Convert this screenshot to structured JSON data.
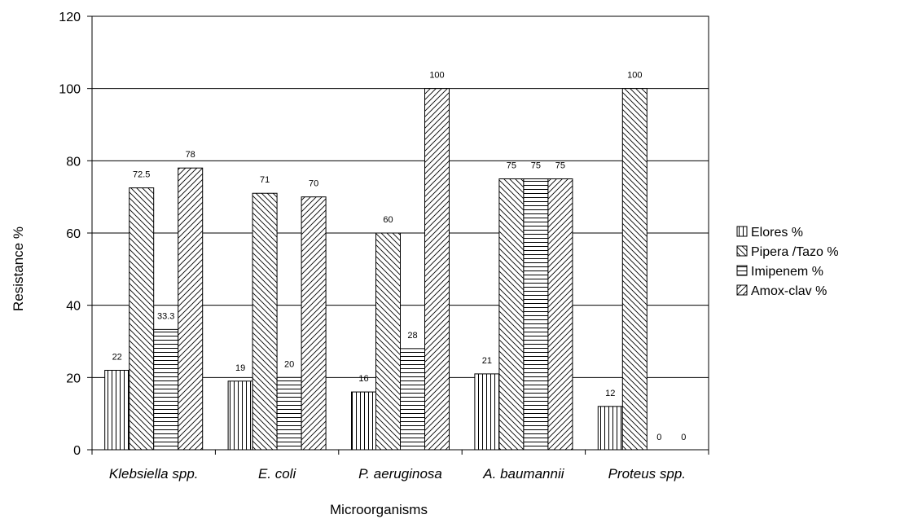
{
  "chart_data": {
    "type": "bar",
    "title": "",
    "xlabel": "Microorganisms",
    "ylabel": "Resistance %",
    "ylim": [
      0,
      120
    ],
    "yticks": [
      0,
      20,
      40,
      60,
      80,
      100,
      120
    ],
    "grid": true,
    "legend_position": "right",
    "categories": [
      "Klebsiella spp.",
      "E. coli",
      "P. aeruginosa",
      "A. baumannii",
      "Proteus spp."
    ],
    "series": [
      {
        "name": "Elores %",
        "values": [
          22,
          19,
          16,
          21,
          12
        ],
        "labels": [
          "22",
          "19",
          "16",
          "21",
          "12"
        ],
        "pattern": "vertical"
      },
      {
        "name": "Pipera /Tazo %",
        "values": [
          72.5,
          71,
          60,
          75,
          100
        ],
        "labels": [
          "72.5",
          "71",
          "60",
          "75",
          "100"
        ],
        "pattern": "backslash"
      },
      {
        "name": "Imipenem %",
        "values": [
          33.3,
          20,
          28,
          75,
          0
        ],
        "labels": [
          "33.3",
          "20",
          "28",
          "75",
          "0"
        ],
        "pattern": "horizontal"
      },
      {
        "name": "Amox-clav %",
        "values": [
          78,
          70,
          100,
          75,
          0
        ],
        "labels": [
          "78",
          "70",
          "100",
          "75",
          "0"
        ],
        "pattern": "slash"
      }
    ]
  }
}
